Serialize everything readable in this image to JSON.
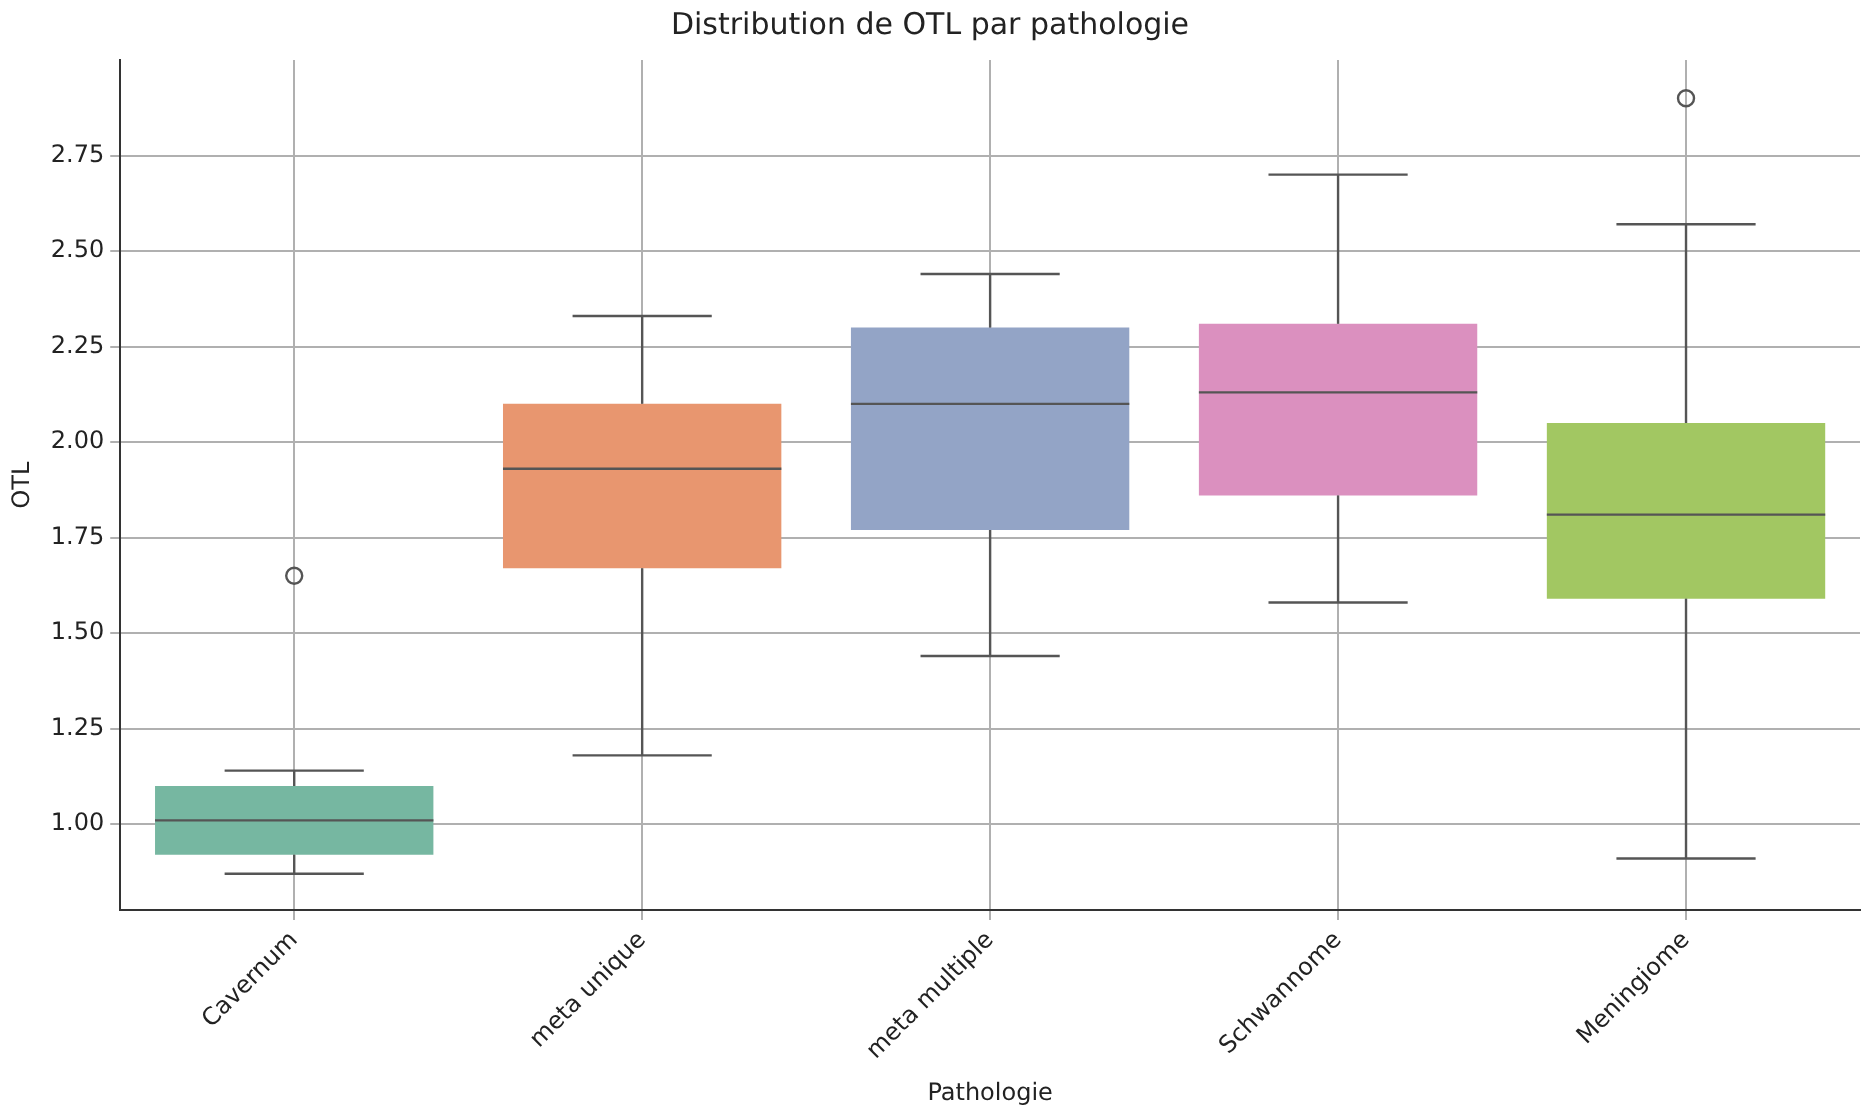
{
  "chart_data": {
    "type": "box",
    "title": "Distribution de OTL par pathologie",
    "xlabel": "Pathologie",
    "ylabel": "OTL",
    "categories": [
      "Cavernum",
      "meta unique",
      "meta multiple",
      "Schwannome",
      "Meningiome"
    ],
    "colors": [
      "#76b7a1",
      "#e8966f",
      "#93a4c6",
      "#db90bf",
      "#a2c762"
    ],
    "boxes": [
      {
        "low": 0.87,
        "q1": 0.92,
        "median": 1.01,
        "q3": 1.1,
        "high": 1.14,
        "outliers": [
          1.65
        ]
      },
      {
        "low": 1.18,
        "q1": 1.67,
        "median": 1.93,
        "q3": 2.1,
        "high": 2.33
      },
      {
        "low": 1.44,
        "q1": 1.77,
        "median": 2.1,
        "q3": 2.3,
        "high": 2.44
      },
      {
        "low": 1.58,
        "q1": 1.86,
        "median": 2.13,
        "q3": 2.31,
        "high": 2.7
      },
      {
        "low": 0.91,
        "q1": 1.59,
        "median": 1.81,
        "q3": 2.05,
        "high": 2.57,
        "outliers": [
          2.9
        ]
      }
    ],
    "ylim": [
      0.775,
      3.0
    ],
    "yticks": [
      {
        "value": 1,
        "label": "1.00"
      },
      {
        "value": 1.25,
        "label": "1.25"
      },
      {
        "value": 1.5,
        "label": "1.50"
      },
      {
        "value": 1.75,
        "label": "1.75"
      },
      {
        "value": 2,
        "label": "2.00"
      },
      {
        "value": 2.25,
        "label": "2.25"
      },
      {
        "value": 2.5,
        "label": "2.50"
      },
      {
        "value": 2.75,
        "label": "2.75"
      }
    ],
    "grid": true
  }
}
